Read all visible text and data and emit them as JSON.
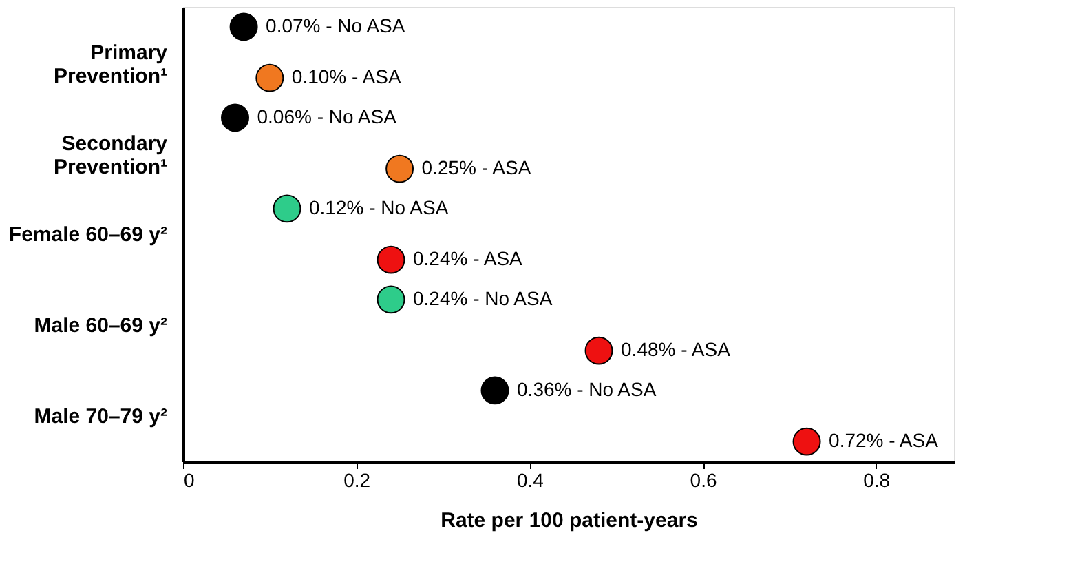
{
  "chart_data": {
    "type": "scatter",
    "orientation": "horizontal",
    "categories": [
      "Primary Prevention¹",
      "Secondary Prevention¹",
      "Female 60–69 y²",
      "Male 60–69 y²",
      "Male 70–79 y²"
    ],
    "series": [
      {
        "colors": [
          "#000000",
          "#000000",
          "#2ecc8a",
          "#2ecc8a",
          "#000000"
        ],
        "values": [
          0.07,
          0.06,
          0.12,
          0.24,
          0.36
        ],
        "value_labels": [
          "0.07% - No ASA",
          "0.06% - No ASA",
          "0.12% - No ASA",
          "0.24% - No ASA",
          "0.36% - No ASA"
        ]
      },
      {
        "colors": [
          "#f07820",
          "#f07820",
          "#ee1111",
          "#ee1111",
          "#ee1111"
        ],
        "values": [
          0.1,
          0.25,
          0.24,
          0.48,
          0.72
        ],
        "value_labels": [
          "0.10% - ASA",
          "0.25% - ASA",
          "0.24%  - ASA",
          "0.48% - ASA",
          "0.72% - ASA"
        ]
      }
    ],
    "xlim": [
      0,
      0.89
    ],
    "xticks": [
      0,
      0.2,
      0.4,
      0.6,
      0.8
    ],
    "xlabel": "Rate per 100 patient-years",
    "grid": false,
    "marker": "circle"
  }
}
